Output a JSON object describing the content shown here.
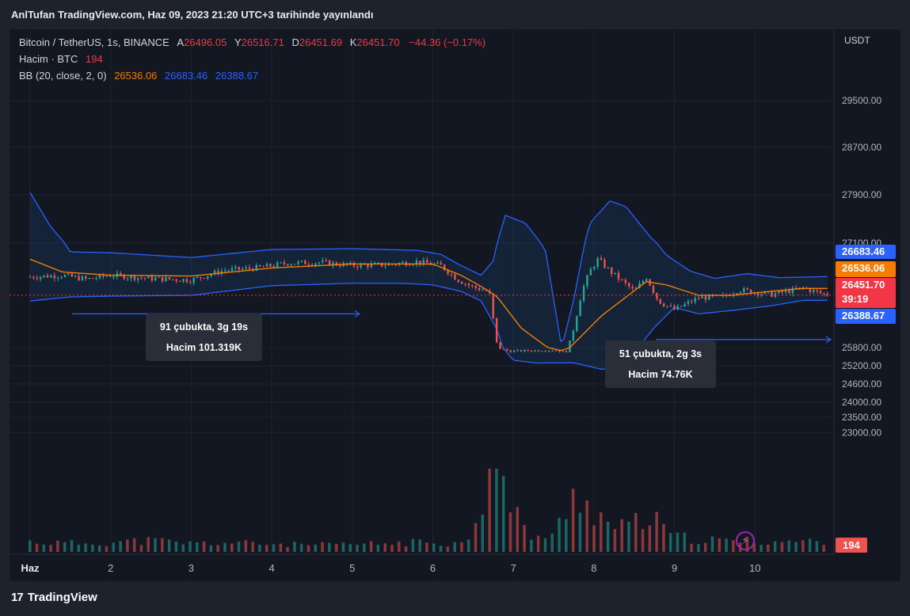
{
  "header": {
    "publish_text": "AnlTufan TradingView.com, Haz 09, 2023 21:20 UTC+3 tarihinde yayınlandı"
  },
  "legend": {
    "symbol": "Bitcoin / TetherUS, 1s, BINANCE",
    "open_label": "A",
    "open": "26496.05",
    "high_label": "Y",
    "high": "26516.71",
    "low_label": "D",
    "low": "26451.69",
    "close_label": "K",
    "close": "26451.70",
    "change": "−44.36 (−0.17%)",
    "volume_label": "Hacim · BTC",
    "volume": "194",
    "bb_label": "BB (20, close, 2, 0)",
    "bb_basis": "26536.06",
    "bb_upper": "26683.46",
    "bb_lower": "26388.67"
  },
  "axis": {
    "currency": "USDT"
  },
  "price_tags": {
    "upper": "26683.46",
    "basis": "26536.06",
    "last": "26451.70",
    "countdown": "39:19",
    "lower": "26388.67",
    "volume": "194"
  },
  "info_boxes": [
    {
      "bars": "91 çubukta, 3g 19s",
      "volume": "Hacim 101.319K"
    },
    {
      "bars": "51 çubukta, 2g 3s",
      "volume": "Hacim 74.76K"
    }
  ],
  "footer": {
    "brand": "TradingView",
    "logo": "17"
  },
  "colors": {
    "up": "#26a69a",
    "down": "#ef5350",
    "bb_band": "#2962ff",
    "bb_basis": "#f57c00",
    "tag_blue": "#2962ff",
    "tag_orange": "#f57c00",
    "tag_red": "#f23645"
  },
  "chart_data": {
    "type": "candlestick",
    "price_ticks": [
      29500,
      28700,
      27900,
      27100,
      25800,
      25200,
      24600,
      24000,
      23500,
      23000
    ],
    "x_ticks": [
      "Haz",
      "2",
      "3",
      "4",
      "5",
      "6",
      "7",
      "8",
      "9",
      "10"
    ],
    "close_path": [
      [
        0.0,
        26680
      ],
      [
        0.4,
        26700
      ],
      [
        0.7,
        26650
      ],
      [
        1.0,
        26700
      ],
      [
        1.5,
        26660
      ],
      [
        2.0,
        26640
      ],
      [
        2.4,
        26760
      ],
      [
        2.8,
        26790
      ],
      [
        3.2,
        26850
      ],
      [
        3.6,
        26860
      ],
      [
        4.0,
        26820
      ],
      [
        4.4,
        26830
      ],
      [
        4.8,
        26870
      ],
      [
        5.1,
        26820
      ],
      [
        5.3,
        26650
      ],
      [
        5.5,
        26550
      ],
      [
        5.7,
        26500
      ],
      [
        5.8,
        25800
      ],
      [
        5.95,
        25680
      ],
      [
        6.2,
        25700
      ],
      [
        6.5,
        25720
      ],
      [
        6.65,
        25650
      ],
      [
        6.75,
        26050
      ],
      [
        6.85,
        26500
      ],
      [
        6.95,
        26750
      ],
      [
        7.05,
        26900
      ],
      [
        7.2,
        26750
      ],
      [
        7.5,
        26500
      ],
      [
        7.65,
        26680
      ],
      [
        7.8,
        26380
      ],
      [
        8.0,
        26270
      ],
      [
        8.3,
        26420
      ],
      [
        8.6,
        26430
      ],
      [
        8.8,
        26520
      ],
      [
        9.2,
        26460
      ],
      [
        9.6,
        26540
      ],
      [
        9.9,
        26452
      ]
    ],
    "volume_path": [
      [
        0.0,
        180
      ],
      [
        0.5,
        150
      ],
      [
        1.0,
        170
      ],
      [
        1.5,
        200
      ],
      [
        2.0,
        150
      ],
      [
        2.5,
        160
      ],
      [
        3.0,
        140
      ],
      [
        3.5,
        120
      ],
      [
        4.0,
        130
      ],
      [
        4.5,
        150
      ],
      [
        5.0,
        180
      ],
      [
        5.4,
        140
      ],
      [
        5.75,
        1400
      ],
      [
        5.8,
        2200
      ],
      [
        5.9,
        900
      ],
      [
        6.2,
        300
      ],
      [
        6.5,
        250
      ],
      [
        6.7,
        900
      ],
      [
        6.85,
        1100
      ],
      [
        7.0,
        700
      ],
      [
        7.3,
        400
      ],
      [
        7.7,
        600
      ],
      [
        8.0,
        260
      ],
      [
        8.5,
        200
      ],
      [
        9.0,
        190
      ],
      [
        9.5,
        180
      ],
      [
        9.9,
        194
      ]
    ],
    "bb_upper_path": [
      [
        0.0,
        27940
      ],
      [
        0.25,
        27380
      ],
      [
        0.5,
        26990
      ],
      [
        1.0,
        26980
      ],
      [
        2.0,
        26920
      ],
      [
        3.0,
        27020
      ],
      [
        4.0,
        27030
      ],
      [
        4.8,
        27010
      ],
      [
        5.1,
        26960
      ],
      [
        5.35,
        26820
      ],
      [
        5.6,
        26700
      ],
      [
        5.75,
        26880
      ],
      [
        5.9,
        27560
      ],
      [
        6.15,
        27430
      ],
      [
        6.4,
        27000
      ],
      [
        6.5,
        26400
      ],
      [
        6.6,
        25800
      ],
      [
        6.75,
        26400
      ],
      [
        6.95,
        27430
      ],
      [
        7.2,
        27800
      ],
      [
        7.4,
        27700
      ],
      [
        7.7,
        27200
      ],
      [
        7.9,
        26950
      ],
      [
        8.2,
        26750
      ],
      [
        8.5,
        26660
      ],
      [
        8.9,
        26720
      ],
      [
        9.3,
        26670
      ],
      [
        9.9,
        26683
      ]
    ],
    "bb_lower_path": [
      [
        0.0,
        26380
      ],
      [
        0.5,
        26430
      ],
      [
        1.0,
        26440
      ],
      [
        2.0,
        26450
      ],
      [
        3.0,
        26570
      ],
      [
        4.0,
        26600
      ],
      [
        4.6,
        26600
      ],
      [
        5.0,
        26580
      ],
      [
        5.35,
        26500
      ],
      [
        5.6,
        26380
      ],
      [
        5.8,
        26020
      ],
      [
        6.0,
        25380
      ],
      [
        6.3,
        25290
      ],
      [
        6.5,
        25300
      ],
      [
        6.75,
        25300
      ],
      [
        7.1,
        25080
      ],
      [
        7.3,
        25180
      ],
      [
        7.55,
        25800
      ],
      [
        7.75,
        26050
      ],
      [
        8.0,
        26300
      ],
      [
        8.3,
        26220
      ],
      [
        8.7,
        26260
      ],
      [
        9.2,
        26320
      ],
      [
        9.6,
        26388
      ],
      [
        9.9,
        26388
      ]
    ],
    "bb_basis_path": [
      [
        0.0,
        26900
      ],
      [
        0.4,
        26740
      ],
      [
        1.0,
        26700
      ],
      [
        2.0,
        26690
      ],
      [
        3.0,
        26790
      ],
      [
        4.0,
        26840
      ],
      [
        4.6,
        26840
      ],
      [
        5.0,
        26840
      ],
      [
        5.35,
        26700
      ],
      [
        5.6,
        26560
      ],
      [
        5.8,
        26430
      ],
      [
        6.1,
        26040
      ],
      [
        6.4,
        25820
      ],
      [
        6.6,
        25700
      ],
      [
        6.8,
        25900
      ],
      [
        7.1,
        26200
      ],
      [
        7.4,
        26430
      ],
      [
        7.65,
        26620
      ],
      [
        7.9,
        26580
      ],
      [
        8.3,
        26450
      ],
      [
        8.7,
        26450
      ],
      [
        9.2,
        26500
      ],
      [
        9.6,
        26536
      ],
      [
        9.9,
        26536
      ]
    ],
    "measure_arrows": [
      {
        "from_x": 0.5,
        "to_x": 4.05,
        "price": 26220
      },
      {
        "from_x": 7.75,
        "to_x": 9.9,
        "price": 25900
      }
    ],
    "last_price": 26451.7
  }
}
